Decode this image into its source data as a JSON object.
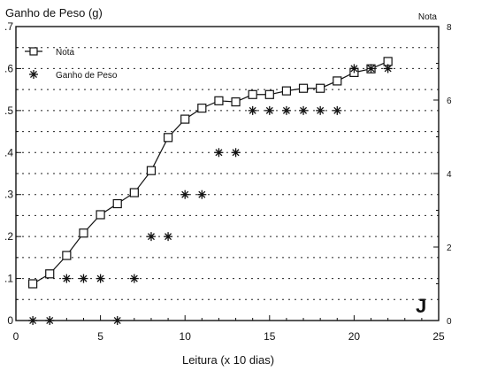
{
  "chart_data": {
    "type": "line",
    "xlabel": "Leitura (x 10 dias)",
    "ylabel_left": "Ganho de Peso (g)",
    "ylabel_right": "Nota",
    "panel_label": "J",
    "xlim": [
      0,
      25
    ],
    "ylim_left": [
      0,
      0.7
    ],
    "ylim_right": [
      0,
      8
    ],
    "x_ticks": [
      "0",
      "5",
      "10",
      "15",
      "20",
      "25"
    ],
    "y_left_ticks": [
      ".7",
      ".6",
      ".5",
      ".4",
      ".3",
      ".2",
      ".1",
      "0"
    ],
    "y_right_ticks": [
      "8",
      "6",
      "4",
      "2",
      "0"
    ],
    "legend_position": "top-left",
    "grid": "horizontal dotted",
    "series": [
      {
        "name": "Nota",
        "axis": "right",
        "marker": "open-square",
        "line": "solid",
        "x": [
          1,
          2,
          3,
          4,
          5,
          6,
          7,
          8,
          9,
          10,
          11,
          12,
          13,
          14,
          15,
          16,
          17,
          18,
          19,
          20,
          21,
          22
        ],
        "y": [
          1.0,
          1.27,
          1.77,
          2.38,
          2.88,
          3.18,
          3.48,
          4.08,
          4.98,
          5.48,
          5.78,
          5.98,
          5.95,
          6.15,
          6.15,
          6.25,
          6.32,
          6.32,
          6.52,
          6.75,
          6.85,
          7.05
        ]
      },
      {
        "name": "Ganho de Peso",
        "axis": "left",
        "marker": "asterisk",
        "line": "none",
        "x": [
          1,
          2,
          3,
          4,
          5,
          6,
          7,
          8,
          9,
          10,
          11,
          12,
          13,
          14,
          15,
          16,
          17,
          18,
          19,
          20,
          21,
          22
        ],
        "y": [
          0.0,
          0.0,
          0.1,
          0.1,
          0.1,
          0.0,
          0.1,
          0.2,
          0.2,
          0.3,
          0.3,
          0.4,
          0.4,
          0.5,
          0.5,
          0.5,
          0.5,
          0.5,
          0.5,
          0.6,
          0.6,
          0.6
        ]
      }
    ]
  }
}
